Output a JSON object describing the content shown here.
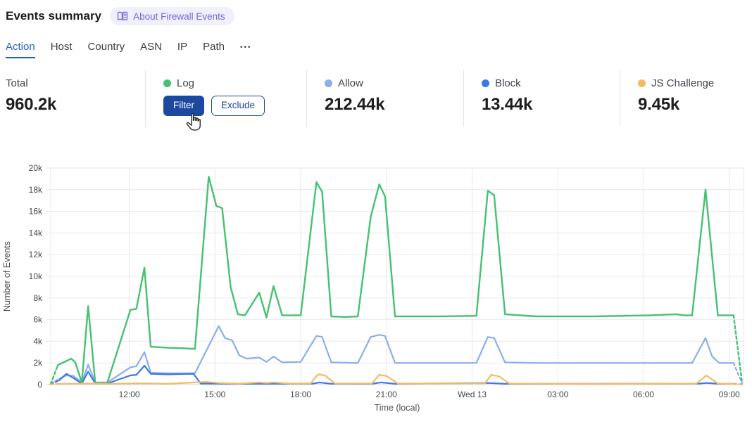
{
  "header": {
    "title": "Events summary",
    "about_badge": {
      "label": "About Firewall Events",
      "icon": "book-icon"
    }
  },
  "tabs": {
    "items": [
      {
        "label": "Action",
        "active": true
      },
      {
        "label": "Host",
        "active": false
      },
      {
        "label": "Country",
        "active": false
      },
      {
        "label": "ASN",
        "active": false
      },
      {
        "label": "IP",
        "active": false
      },
      {
        "label": "Path",
        "active": false
      }
    ],
    "more_label": "•••"
  },
  "stats": {
    "cards": [
      {
        "id": "total",
        "label": "Total",
        "value": "960.2k"
      },
      {
        "id": "log",
        "label": "Log",
        "dot_color": "#46c172",
        "hover_buttons": {
          "filter": "Filter",
          "exclude": "Exclude"
        }
      },
      {
        "id": "allow",
        "label": "Allow",
        "dot_color": "#8aaeec",
        "value": "212.44k"
      },
      {
        "id": "block",
        "label": "Block",
        "dot_color": "#3b78e8",
        "value": "13.44k"
      },
      {
        "id": "js_challenge",
        "label": "JS Challenge",
        "dot_color": "#f4ba63",
        "value": "9.45k"
      }
    ]
  },
  "cursor": {
    "type": "pointer-hand",
    "over": "filter-button"
  },
  "chart_data": {
    "type": "line",
    "title": "",
    "xlabel": "Time (local)",
    "ylabel": "Number of Events",
    "x_unit": "hours_from_left_edge",
    "xlim": [
      0,
      24.25
    ],
    "ylim": [
      0,
      20
    ],
    "y_values_unit": "k_events",
    "grid": true,
    "legend_position": "none (legend shown as stat cards above)",
    "y_ticks": [
      {
        "v": 0,
        "label": "0"
      },
      {
        "v": 2,
        "label": "2k"
      },
      {
        "v": 4,
        "label": "4k"
      },
      {
        "v": 6,
        "label": "6k"
      },
      {
        "v": 8,
        "label": "8k"
      },
      {
        "v": 10,
        "label": "10k"
      },
      {
        "v": 12,
        "label": "12k"
      },
      {
        "v": 14,
        "label": "14k"
      },
      {
        "v": 16,
        "label": "16k"
      },
      {
        "v": 18,
        "label": "18k"
      },
      {
        "v": 20,
        "label": "20k"
      }
    ],
    "x_ticks": [
      {
        "h": 2.75,
        "label": "12:00"
      },
      {
        "h": 5.75,
        "label": "15:00"
      },
      {
        "h": 8.75,
        "label": "18:00"
      },
      {
        "h": 11.75,
        "label": "21:00"
      },
      {
        "h": 14.75,
        "label": "Wed 13"
      },
      {
        "h": 17.75,
        "label": "03:00"
      },
      {
        "h": 20.75,
        "label": "06:00"
      },
      {
        "h": 23.75,
        "label": "09:00"
      }
    ],
    "series": [
      {
        "name": "Allow",
        "color": "#8aaeec",
        "width": 2.2,
        "edge_dashed": true,
        "points": [
          [
            0,
            0.05
          ],
          [
            0.3,
            0.55
          ],
          [
            0.55,
            0.85
          ],
          [
            0.8,
            0.8
          ],
          [
            1.09,
            0.2
          ],
          [
            1.31,
            1.85
          ],
          [
            1.56,
            0.2
          ],
          [
            1.98,
            0.2
          ],
          [
            2.79,
            1.6
          ],
          [
            3.0,
            1.7
          ],
          [
            3.28,
            3.0
          ],
          [
            3.5,
            1.1
          ],
          [
            4.1,
            1.05
          ],
          [
            5.05,
            1.05
          ],
          [
            5.88,
            5.4
          ],
          [
            6.1,
            4.3
          ],
          [
            6.35,
            4.1
          ],
          [
            6.6,
            2.7
          ],
          [
            6.85,
            2.4
          ],
          [
            7.3,
            2.5
          ],
          [
            7.55,
            2.1
          ],
          [
            7.8,
            2.6
          ],
          [
            8.1,
            2.05
          ],
          [
            8.75,
            2.1
          ],
          [
            9.3,
            4.5
          ],
          [
            9.5,
            4.4
          ],
          [
            9.82,
            2.05
          ],
          [
            10.75,
            2.0
          ],
          [
            11.2,
            4.4
          ],
          [
            11.5,
            4.6
          ],
          [
            11.7,
            4.5
          ],
          [
            12.05,
            2.0
          ],
          [
            13.5,
            2.0
          ],
          [
            14.9,
            2.0
          ],
          [
            15.3,
            4.4
          ],
          [
            15.52,
            4.3
          ],
          [
            15.9,
            2.05
          ],
          [
            17,
            2.0
          ],
          [
            19,
            2.0
          ],
          [
            21,
            2.0
          ],
          [
            22.45,
            2.0
          ],
          [
            22.92,
            4.3
          ],
          [
            23.15,
            2.6
          ],
          [
            23.4,
            2.0
          ],
          [
            23.9,
            2.0
          ],
          [
            24.2,
            0.1
          ]
        ]
      },
      {
        "name": "Block",
        "color": "#3b78e8",
        "width": 2.2,
        "edge_dashed": true,
        "points": [
          [
            0,
            0.03
          ],
          [
            0.3,
            0.4
          ],
          [
            0.55,
            1.0
          ],
          [
            0.8,
            0.6
          ],
          [
            1.09,
            0.1
          ],
          [
            1.31,
            1.2
          ],
          [
            1.56,
            0.1
          ],
          [
            1.98,
            0.1
          ],
          [
            2.79,
            0.85
          ],
          [
            3.0,
            0.9
          ],
          [
            3.28,
            1.75
          ],
          [
            3.5,
            1.0
          ],
          [
            4.1,
            0.95
          ],
          [
            5.0,
            1.0
          ],
          [
            5.25,
            0.1
          ],
          [
            7,
            0.08
          ],
          [
            9.2,
            0.1
          ],
          [
            9.4,
            0.2
          ],
          [
            9.82,
            0.08
          ],
          [
            11.3,
            0.1
          ],
          [
            11.55,
            0.2
          ],
          [
            12.05,
            0.08
          ],
          [
            15.3,
            0.15
          ],
          [
            15.9,
            0.08
          ],
          [
            19,
            0.08
          ],
          [
            22.7,
            0.1
          ],
          [
            22.95,
            0.15
          ],
          [
            23.4,
            0.08
          ],
          [
            23.9,
            0.08
          ],
          [
            24.2,
            0.02
          ]
        ]
      },
      {
        "name": "Log",
        "color": "#46c172",
        "width": 2.4,
        "edge_dashed": true,
        "points": [
          [
            0,
            0.05
          ],
          [
            0.25,
            1.8
          ],
          [
            0.72,
            2.4
          ],
          [
            0.86,
            2.05
          ],
          [
            1.09,
            0.2
          ],
          [
            1.31,
            7.25
          ],
          [
            1.56,
            0.15
          ],
          [
            1.98,
            0.15
          ],
          [
            2.79,
            6.9
          ],
          [
            3.0,
            7.0
          ],
          [
            3.28,
            10.8
          ],
          [
            3.5,
            3.5
          ],
          [
            4.1,
            3.4
          ],
          [
            4.7,
            3.35
          ],
          [
            5.05,
            3.3
          ],
          [
            5.53,
            19.2
          ],
          [
            5.8,
            16.5
          ],
          [
            6.0,
            16.3
          ],
          [
            6.3,
            9.0
          ],
          [
            6.55,
            6.5
          ],
          [
            6.8,
            6.4
          ],
          [
            7.3,
            8.5
          ],
          [
            7.55,
            6.2
          ],
          [
            7.8,
            9.1
          ],
          [
            8.1,
            6.4
          ],
          [
            8.75,
            6.4
          ],
          [
            9.3,
            18.7
          ],
          [
            9.5,
            17.8
          ],
          [
            9.82,
            6.3
          ],
          [
            10.3,
            6.25
          ],
          [
            10.75,
            6.3
          ],
          [
            11.2,
            15.5
          ],
          [
            11.5,
            18.5
          ],
          [
            11.7,
            17.4
          ],
          [
            12.05,
            6.3
          ],
          [
            13.5,
            6.3
          ],
          [
            14.9,
            6.35
          ],
          [
            15.3,
            17.9
          ],
          [
            15.52,
            17.5
          ],
          [
            15.9,
            6.5
          ],
          [
            17,
            6.3
          ],
          [
            19,
            6.3
          ],
          [
            21,
            6.4
          ],
          [
            21.9,
            6.5
          ],
          [
            22.15,
            6.4
          ],
          [
            22.45,
            6.4
          ],
          [
            22.92,
            18.0
          ],
          [
            23.35,
            6.4
          ],
          [
            23.9,
            6.4
          ],
          [
            24.2,
            0.15
          ]
        ]
      },
      {
        "name": "JS Challenge",
        "color": "#f4ba63",
        "width": 2.2,
        "edge_dashed": true,
        "points": [
          [
            0,
            0.02
          ],
          [
            0.3,
            0.08
          ],
          [
            1.31,
            0.1
          ],
          [
            1.98,
            0.08
          ],
          [
            3.28,
            0.12
          ],
          [
            4.1,
            0.08
          ],
          [
            5.45,
            0.25
          ],
          [
            5.9,
            0.15
          ],
          [
            6.6,
            0.1
          ],
          [
            7.3,
            0.2
          ],
          [
            7.55,
            0.15
          ],
          [
            7.8,
            0.2
          ],
          [
            8.4,
            0.1
          ],
          [
            9.1,
            0.12
          ],
          [
            9.35,
            0.95
          ],
          [
            9.6,
            0.85
          ],
          [
            9.95,
            0.1
          ],
          [
            11.25,
            0.12
          ],
          [
            11.5,
            0.9
          ],
          [
            11.75,
            0.8
          ],
          [
            12.15,
            0.1
          ],
          [
            15.2,
            0.12
          ],
          [
            15.42,
            0.9
          ],
          [
            15.7,
            0.75
          ],
          [
            16.05,
            0.1
          ],
          [
            19,
            0.06
          ],
          [
            22.6,
            0.1
          ],
          [
            22.95,
            0.85
          ],
          [
            23.35,
            0.1
          ],
          [
            23.9,
            0.06
          ],
          [
            24.2,
            0.02
          ]
        ]
      }
    ]
  }
}
